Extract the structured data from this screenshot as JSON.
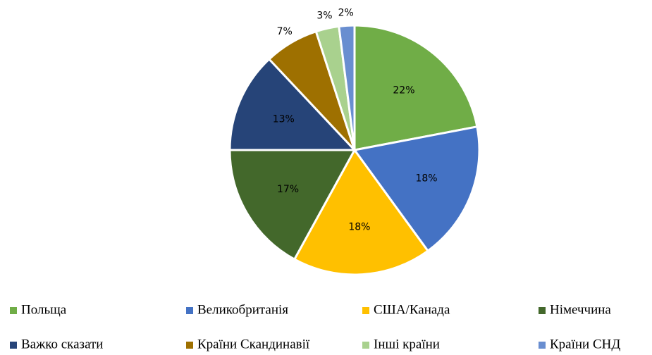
{
  "chart_data": {
    "type": "pie",
    "categories": [
      "Польща",
      "Великобританія",
      "США/Канада",
      "Німеччина",
      "Важко сказати",
      "Країни Скандинавії",
      "Інші країни",
      "Країни СНД"
    ],
    "values": [
      22,
      18,
      18,
      17,
      13,
      7,
      3,
      2
    ],
    "value_labels": [
      "22%",
      "18%",
      "18%",
      "17%",
      "13%",
      "7%",
      "3%",
      "2%"
    ],
    "colors": [
      "#70ad47",
      "#4472c4",
      "#ffc000",
      "#43682b",
      "#264478",
      "#9e7000",
      "#a9d18e",
      "#698ed0"
    ],
    "legend": "bottom"
  }
}
